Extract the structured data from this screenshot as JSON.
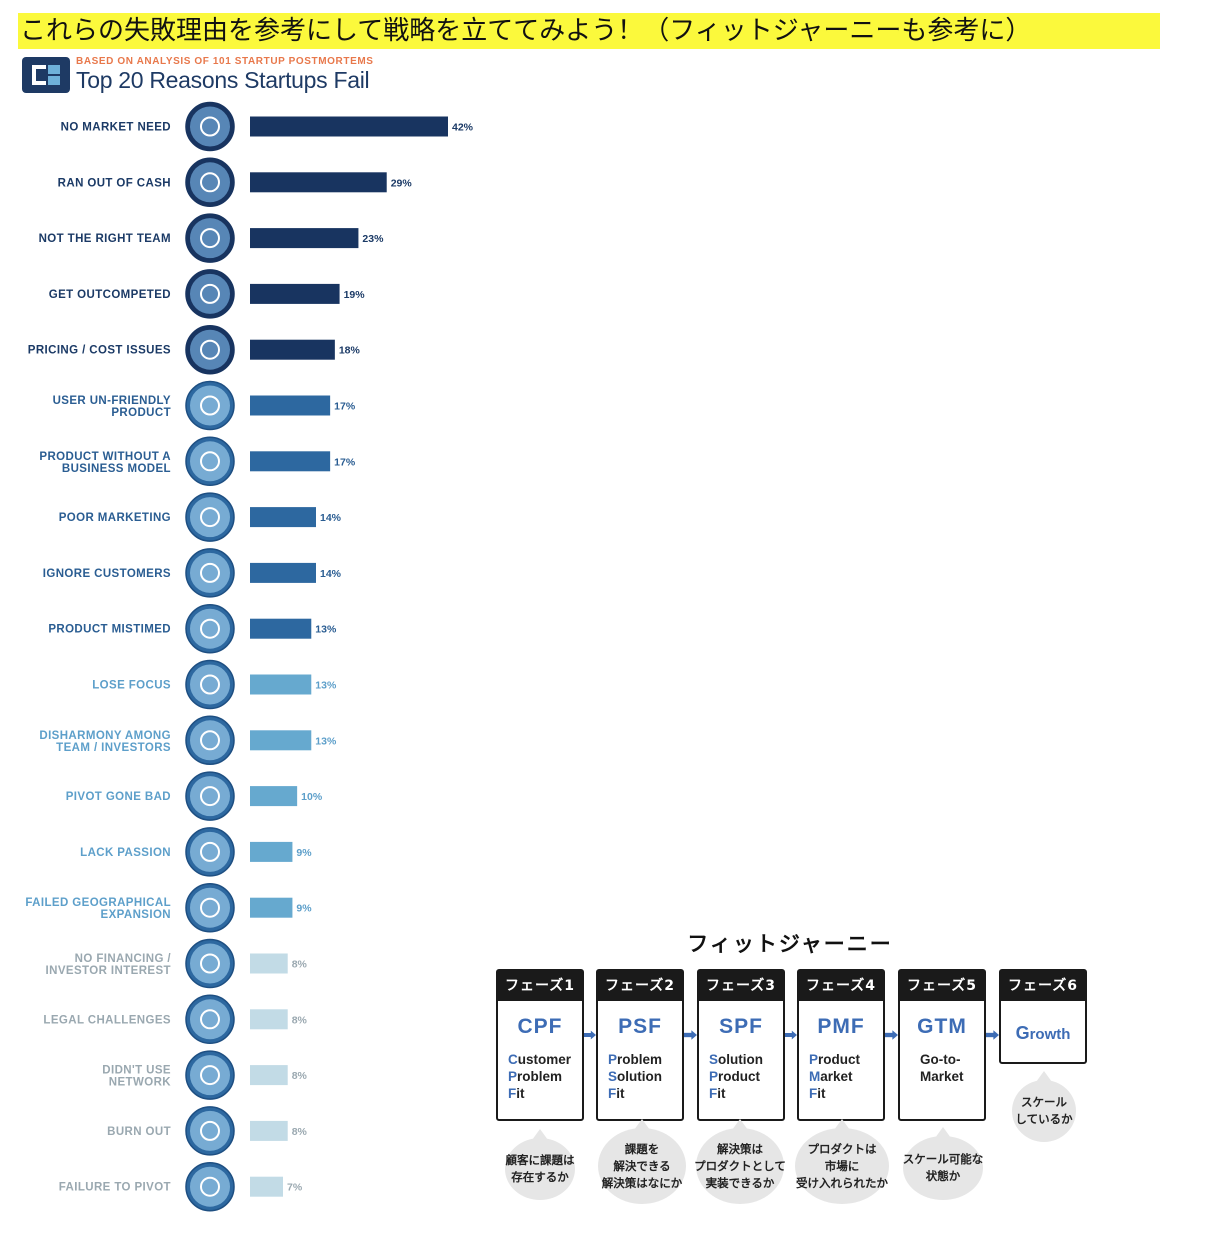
{
  "banner_text": "これらの失敗理由を参考にして戦略を立ててみよう！（フィットジャーニーも参考に）",
  "infographic": {
    "subtitle": "BASED ON ANALYSIS OF 101 STARTUP POSTMORTEMS",
    "title": "Top 20 Reasons Startups Fail"
  },
  "colors": {
    "tier1": "#183460",
    "tier2": "#2d68a0",
    "tier3": "#66a9cf",
    "tier4": "#c2dbe6",
    "label_tier1": "#1b3a66",
    "label_tier2": "#2a5d92",
    "label_tier3": "#5d9fca",
    "label_tier4": "#9aa8b0",
    "accent": "#3d6cb5",
    "banner": "#fbf93c"
  },
  "chart_data": {
    "type": "bar",
    "orientation": "horizontal",
    "title": "Top 20 Reasons Startups Fail",
    "subtitle": "BASED ON ANALYSIS OF 101 STARTUP POSTMORTEMS",
    "unit": "%",
    "categories": [
      "NO MARKET NEED",
      "RAN OUT OF CASH",
      "NOT THE RIGHT TEAM",
      "GET OUTCOMPETED",
      "PRICING / COST ISSUES",
      "USER UN-FRIENDLY PRODUCT",
      "PRODUCT WITHOUT A BUSINESS MODEL",
      "POOR MARKETING",
      "IGNORE CUSTOMERS",
      "PRODUCT MISTIMED",
      "LOSE FOCUS",
      "DISHARMONY AMONG TEAM / INVESTORS",
      "PIVOT GONE BAD",
      "LACK PASSION",
      "FAILED GEOGRAPHICAL EXPANSION",
      "NO FINANCING / INVESTOR INTEREST",
      "LEGAL CHALLENGES",
      "DIDN'T USE NETWORK",
      "BURN OUT",
      "FAILURE TO PIVOT"
    ],
    "label_lines": [
      [
        "NO MARKET NEED"
      ],
      [
        "RAN OUT OF CASH"
      ],
      [
        "NOT THE RIGHT TEAM"
      ],
      [
        "GET OUTCOMPETED"
      ],
      [
        "PRICING / COST ISSUES"
      ],
      [
        "USER UN-FRIENDLY",
        "PRODUCT"
      ],
      [
        "PRODUCT WITHOUT A",
        "BUSINESS MODEL"
      ],
      [
        "POOR MARKETING"
      ],
      [
        "IGNORE CUSTOMERS"
      ],
      [
        "PRODUCT MISTIMED"
      ],
      [
        "LOSE FOCUS"
      ],
      [
        "DISHARMONY AMONG",
        "TEAM / INVESTORS"
      ],
      [
        "PIVOT GONE BAD"
      ],
      [
        "LACK PASSION"
      ],
      [
        "FAILED GEOGRAPHICAL",
        "EXPANSION"
      ],
      [
        "NO FINANCING /",
        "INVESTOR INTEREST"
      ],
      [
        "LEGAL CHALLENGES"
      ],
      [
        "DIDN'T USE",
        "NETWORK"
      ],
      [
        "BURN OUT"
      ],
      [
        "FAILURE TO PIVOT"
      ]
    ],
    "values": [
      42,
      29,
      23,
      19,
      18,
      17,
      17,
      14,
      14,
      13,
      13,
      13,
      10,
      9,
      9,
      8,
      8,
      8,
      8,
      7
    ],
    "value_labels": [
      "42%",
      "29%",
      "23%",
      "19%",
      "18%",
      "17%",
      "17%",
      "14%",
      "14%",
      "13%",
      "13%",
      "13%",
      "10%",
      "9%",
      "9%",
      "8%",
      "8%",
      "8%",
      "8%",
      "7%"
    ],
    "tiers": [
      1,
      1,
      1,
      1,
      1,
      2,
      2,
      2,
      2,
      2,
      3,
      3,
      3,
      3,
      3,
      4,
      4,
      4,
      4,
      4
    ],
    "icons": [
      "puzzle-icon",
      "money-drain-icon",
      "team-icon",
      "podium-icon",
      "coins-icon",
      "thumbs-down-icon",
      "rickshaw-icon",
      "megaphone-icon",
      "monkey-icon",
      "snowflake-icon",
      "scatter-arrows-icon",
      "tug-of-war-icon",
      "broken-pencil-icon",
      "sleep-zz-icon",
      "location-pin-icon",
      "hand-icon",
      "handcuffs-icon",
      "network-icon",
      "fuel-pump-icon",
      "ship-icon"
    ],
    "xlim": [
      0,
      42
    ]
  },
  "fit_journey": {
    "title": "フィットジャーニー",
    "phases": [
      {
        "header": "フェーズ1",
        "abbr": "CPF",
        "lines": [
          [
            "C",
            "ustomer"
          ],
          [
            "P",
            "roblem"
          ],
          [
            "F",
            "it"
          ]
        ],
        "bubble": "顧客に課題は\n存在するか"
      },
      {
        "header": "フェーズ2",
        "abbr": "PSF",
        "lines": [
          [
            "P",
            "roblem"
          ],
          [
            "S",
            "olution"
          ],
          [
            "F",
            "it"
          ]
        ],
        "bubble": "課題を\n解決できる\n解決策はなにか"
      },
      {
        "header": "フェーズ3",
        "abbr": "SPF",
        "lines": [
          [
            "S",
            "olution"
          ],
          [
            "P",
            "roduct"
          ],
          [
            "F",
            "it"
          ]
        ],
        "bubble": "解決策は\nプロダクトとして\n実装できるか"
      },
      {
        "header": "フェーズ4",
        "abbr": "PMF",
        "lines": [
          [
            "P",
            "roduct"
          ],
          [
            "M",
            "arket"
          ],
          [
            "F",
            "it"
          ]
        ],
        "bubble": "プロダクトは\n市場に\n受け入れられたか"
      },
      {
        "header": "フェーズ5",
        "abbr": "GTM",
        "lines": [
          [
            "Go-to-",
            ""
          ],
          [
            "Market",
            ""
          ]
        ],
        "bubble": "スケール可能な\n状態か"
      },
      {
        "header": "フェーズ6",
        "abbr_first": "G",
        "abbr_rest": "rowth",
        "bubble": "スケール\nしているか"
      }
    ]
  }
}
